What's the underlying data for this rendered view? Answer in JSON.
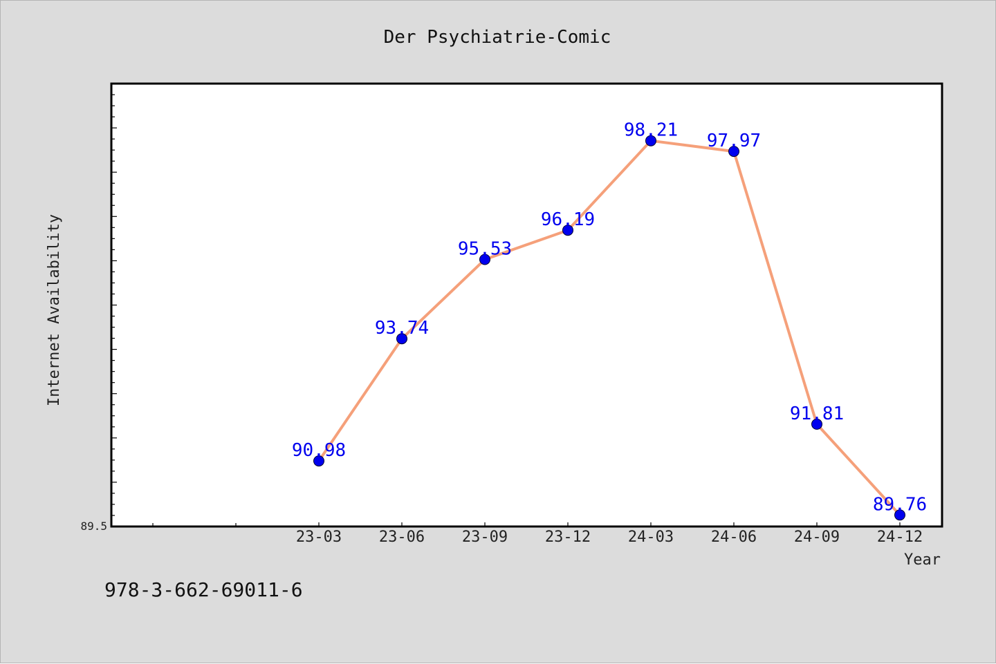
{
  "chart_data": {
    "type": "line",
    "title": "Der Psychiatrie-Comic",
    "xlabel": "Year",
    "ylabel": "Internet Availability",
    "categories": [
      "23-03",
      "23-06",
      "23-09",
      "23-12",
      "24-03",
      "24-06",
      "24-09",
      "24-12"
    ],
    "values": [
      90.98,
      93.74,
      95.53,
      96.19,
      98.21,
      97.97,
      91.81,
      89.76
    ],
    "ylim": [
      89.5,
      99.5
    ],
    "ytick_labels": [
      "89.5"
    ],
    "grid": false,
    "line_color": "#f5a07a",
    "marker_color": "#0000ee",
    "label_color": "#0000ee"
  },
  "footer_text": "978-3-662-69011-6"
}
